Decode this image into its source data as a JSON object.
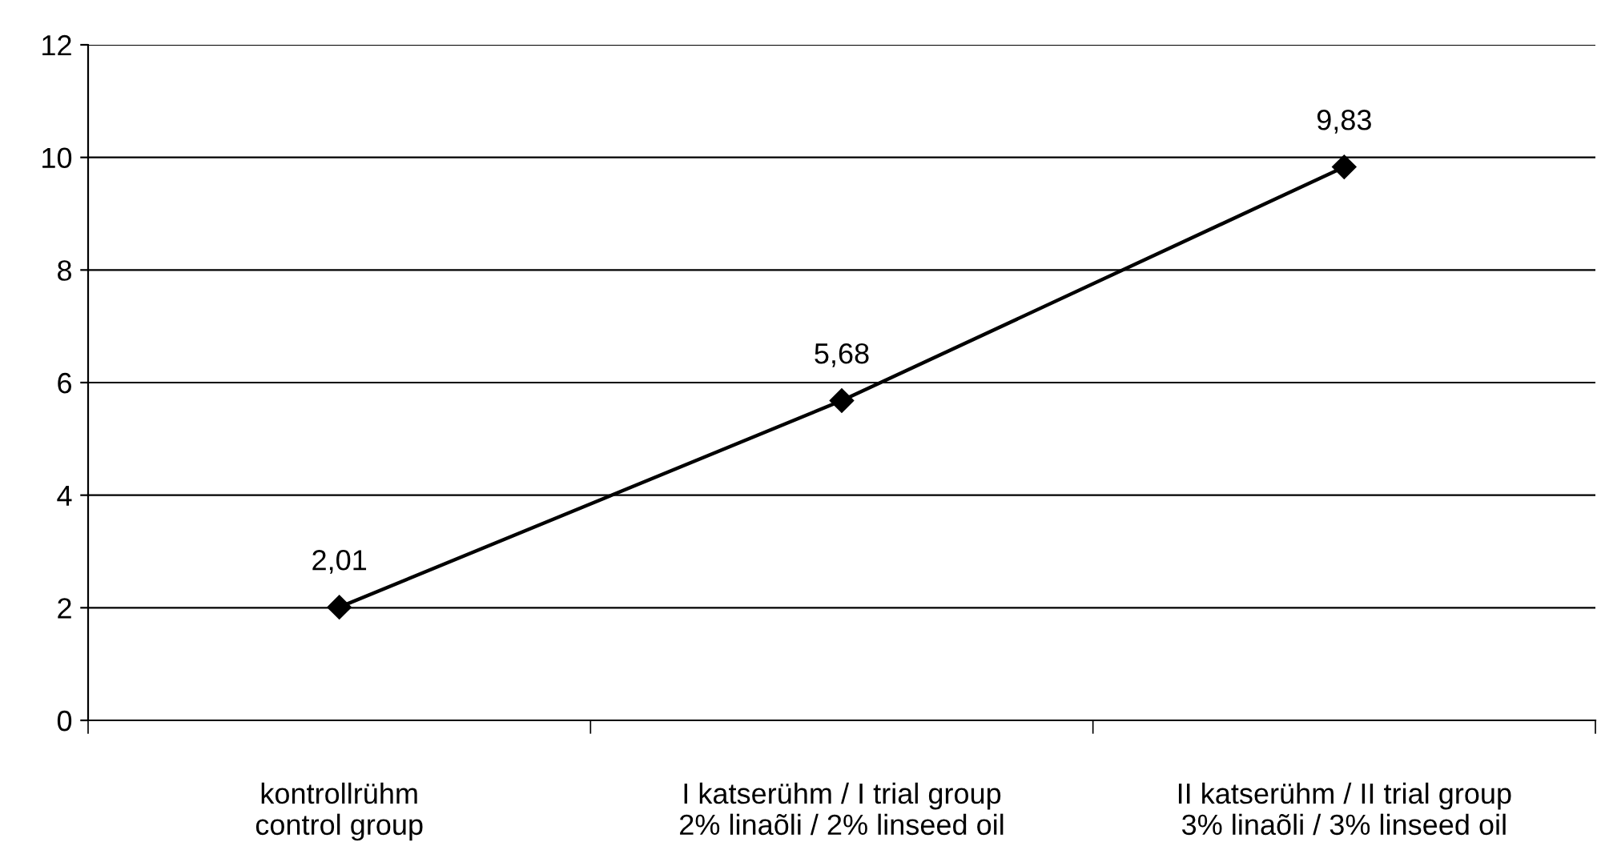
{
  "chart_data": {
    "type": "line",
    "categories": [
      "kontrollrühm\ncontrol group",
      "I katserühm / I trial group\n2% linaõli / 2% linseed oil",
      "II katserühm / II trial group\n3% linaõli / 3% linseed oil"
    ],
    "series": [
      {
        "color": "#000000",
        "values": [
          2.01,
          5.68,
          9.83
        ],
        "value_labels": [
          "2,01",
          "5,68",
          "9,83"
        ]
      }
    ],
    "ylim": [
      0,
      12
    ],
    "yticks": [
      0,
      2,
      4,
      6,
      8,
      10,
      12
    ],
    "grid": "y",
    "marker": "diamond",
    "line_style": "solid"
  }
}
